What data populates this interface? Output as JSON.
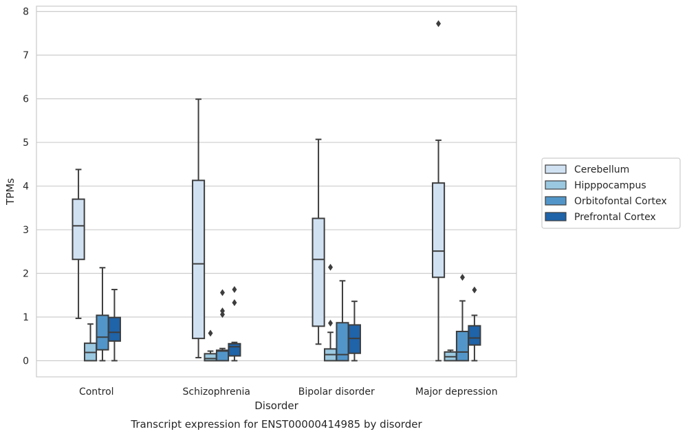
{
  "chart_data": {
    "type": "box",
    "xlabel": "Disorder",
    "ylabel": "TPMs",
    "caption": "Transcript expression for ENST00000414985 by disorder",
    "ylim": [
      -0.37,
      8.12
    ],
    "yticks": [
      0,
      1,
      2,
      3,
      4,
      5,
      6,
      7,
      8
    ],
    "grid": "horizontal",
    "legend_position": "right",
    "categories": [
      "Control",
      "Schizophrenia",
      "Bipolar disorder",
      "Major depression"
    ],
    "series": [
      {
        "name": "Cerebellum",
        "color": "#d0e1f2",
        "boxes": [
          {
            "whislo": 0.97,
            "q1": 2.32,
            "med": 3.09,
            "q3": 3.7,
            "whishi": 4.38,
            "fliers": []
          },
          {
            "whislo": 0.07,
            "q1": 0.51,
            "med": 2.22,
            "q3": 4.13,
            "whishi": 5.99,
            "fliers": []
          },
          {
            "whislo": 0.38,
            "q1": 0.79,
            "med": 2.32,
            "q3": 3.26,
            "whishi": 5.07,
            "fliers": []
          },
          {
            "whislo": 0.0,
            "q1": 1.91,
            "med": 2.51,
            "q3": 4.07,
            "whishi": 5.05,
            "fliers": [
              7.72
            ]
          }
        ]
      },
      {
        "name": "Hipppocampus",
        "color": "#9ac8e0",
        "boxes": [
          {
            "whislo": 0.0,
            "q1": 0.0,
            "med": 0.19,
            "q3": 0.4,
            "whishi": 0.84,
            "fliers": []
          },
          {
            "whislo": 0.0,
            "q1": 0.0,
            "med": 0.05,
            "q3": 0.16,
            "whishi": 0.22,
            "fliers": [
              0.63
            ]
          },
          {
            "whislo": 0.0,
            "q1": 0.0,
            "med": 0.14,
            "q3": 0.27,
            "whishi": 0.65,
            "fliers": [
              0.86,
              2.14
            ]
          },
          {
            "whislo": 0.0,
            "q1": 0.0,
            "med": 0.09,
            "q3": 0.2,
            "whishi": 0.24,
            "fliers": []
          }
        ]
      },
      {
        "name": "Orbitofontal Cortex",
        "color": "#5296c9",
        "boxes": [
          {
            "whislo": 0.0,
            "q1": 0.25,
            "med": 0.54,
            "q3": 1.04,
            "whishi": 2.13,
            "fliers": []
          },
          {
            "whislo": 0.0,
            "q1": 0.0,
            "med": 0.22,
            "q3": 0.24,
            "whishi": 0.28,
            "fliers": [
              1.06,
              1.14,
              1.56
            ]
          },
          {
            "whislo": 0.0,
            "q1": 0.0,
            "med": 0.14,
            "q3": 0.87,
            "whishi": 1.83,
            "fliers": []
          },
          {
            "whislo": 0.0,
            "q1": 0.0,
            "med": 0.2,
            "q3": 0.67,
            "whishi": 1.37,
            "fliers": [
              1.91
            ]
          }
        ]
      },
      {
        "name": "Prefrontal Cortex",
        "color": "#1f63a8",
        "boxes": [
          {
            "whislo": 0.0,
            "q1": 0.45,
            "med": 0.65,
            "q3": 0.99,
            "whishi": 1.63,
            "fliers": []
          },
          {
            "whislo": 0.0,
            "q1": 0.11,
            "med": 0.32,
            "q3": 0.39,
            "whishi": 0.42,
            "fliers": [
              1.33,
              1.63
            ]
          },
          {
            "whislo": 0.0,
            "q1": 0.17,
            "med": 0.51,
            "q3": 0.82,
            "whishi": 1.36,
            "fliers": []
          },
          {
            "whislo": 0.0,
            "q1": 0.36,
            "med": 0.52,
            "q3": 0.8,
            "whishi": 1.04,
            "fliers": [
              1.62
            ]
          }
        ]
      }
    ]
  }
}
